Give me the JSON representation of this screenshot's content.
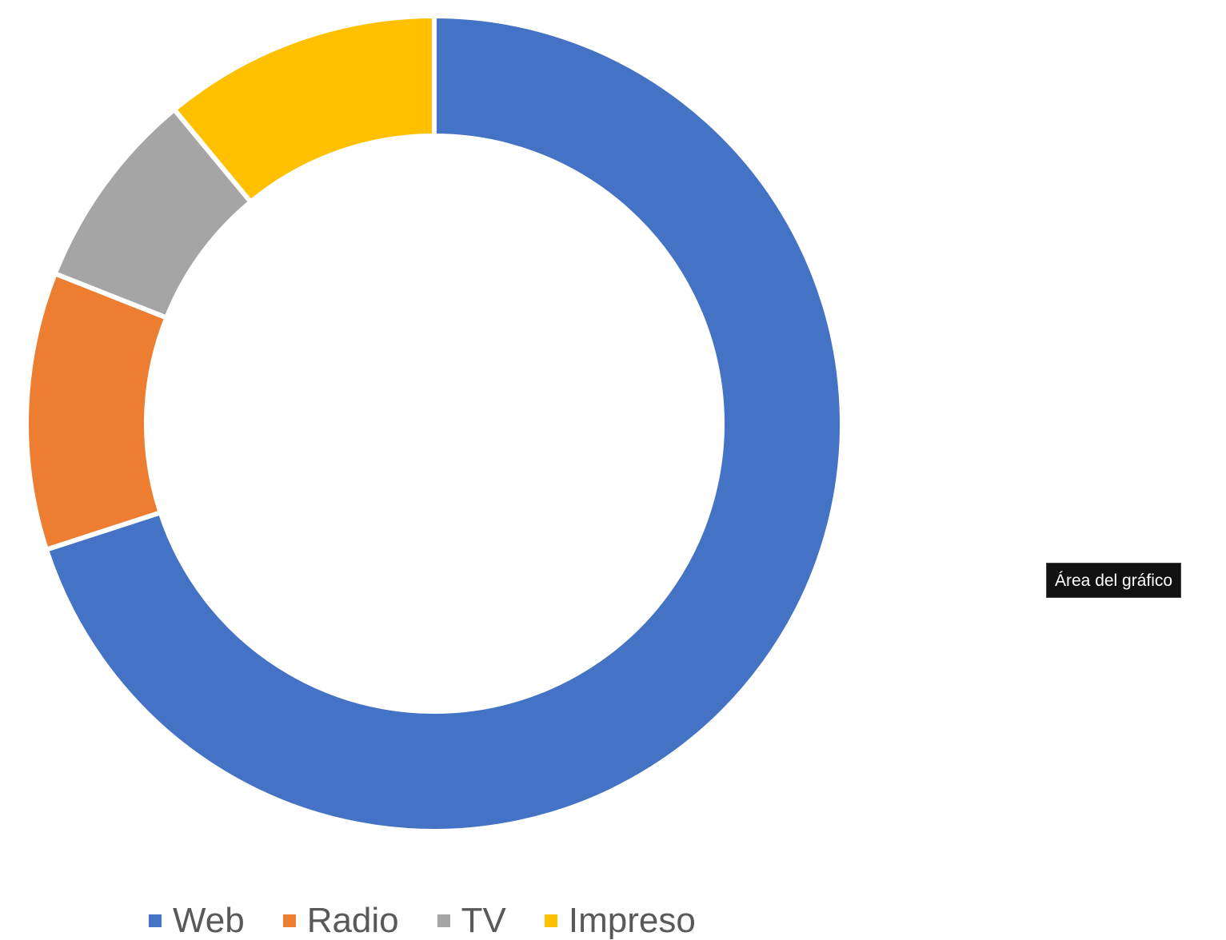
{
  "chart_data": {
    "type": "pie",
    "variant": "donut",
    "categories": [
      "Web",
      "Radio",
      "TV",
      "Impreso"
    ],
    "values": [
      70,
      11,
      8,
      11
    ],
    "colors": [
      "#4472C4",
      "#ED7D31",
      "#A5A5A5",
      "#FFC000"
    ],
    "title": "",
    "legend": "bottom"
  },
  "tooltip": {
    "text": "Área del gráfico"
  }
}
